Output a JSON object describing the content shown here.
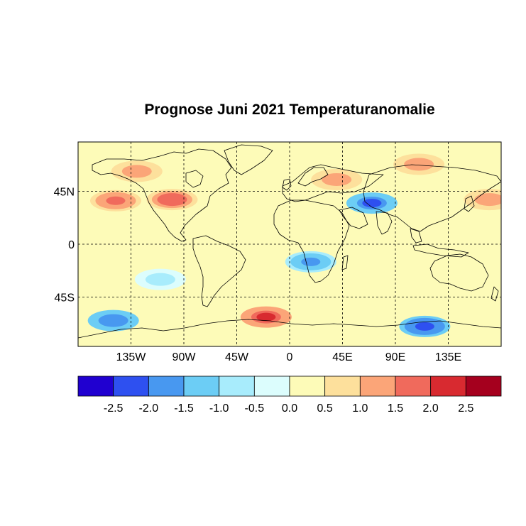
{
  "title": "Prognose Juni 2021 Temperaturanomalie",
  "map": {
    "projection": "equirectangular",
    "lon_range": [
      -180,
      180
    ],
    "lat_range": [
      -87,
      87
    ],
    "grid": "dashed",
    "lat_ticks": [
      {
        "value": 45,
        "label": "45N"
      },
      {
        "value": 0,
        "label": "0"
      },
      {
        "value": -45,
        "label": "45S"
      }
    ],
    "lon_ticks": [
      {
        "value": -135,
        "label": "135W"
      },
      {
        "value": -90,
        "label": "90W"
      },
      {
        "value": -45,
        "label": "45W"
      },
      {
        "value": 0,
        "label": "0"
      },
      {
        "value": 45,
        "label": "45E"
      },
      {
        "value": 90,
        "label": "90E"
      },
      {
        "value": 135,
        "label": "135E"
      }
    ],
    "anomalies": [
      {
        "region": "north-pacific-east",
        "lon": -148,
        "lat": 37,
        "value": 1.6
      },
      {
        "region": "us-west",
        "lon": -100,
        "lat": 38,
        "value": 1.8
      },
      {
        "region": "alaska",
        "lon": -130,
        "lat": 62,
        "value": 1.2
      },
      {
        "region": "north-pacific-west",
        "lon": 170,
        "lat": 38,
        "value": 1.2
      },
      {
        "region": "east-europe",
        "lon": 40,
        "lat": 55,
        "value": 1.3
      },
      {
        "region": "siberia",
        "lon": 110,
        "lat": 68,
        "value": 1.2
      },
      {
        "region": "central-asia",
        "lon": 70,
        "lat": 35,
        "value": -2.2
      },
      {
        "region": "southern-africa",
        "lon": 18,
        "lat": -15,
        "value": -1.6
      },
      {
        "region": "southern-ocean-atlantic",
        "lon": -20,
        "lat": -62,
        "value": 2.2
      },
      {
        "region": "southern-ocean-pacific",
        "lon": -150,
        "lat": -65,
        "value": -2.0
      },
      {
        "region": "southern-ocean-indian",
        "lon": 115,
        "lat": -70,
        "value": -2.3
      },
      {
        "region": "south-pacific",
        "lon": -110,
        "lat": -30,
        "value": -0.6
      },
      {
        "region": "indian-ocean",
        "lon": 75,
        "lat": -15,
        "value": 0.4
      }
    ]
  },
  "colorbar": {
    "colors": [
      "#2000d0",
      "#2e50f0",
      "#4898f0",
      "#6ccdf5",
      "#a8ecfc",
      "#dcfdfd",
      "#fdfbb8",
      "#fde09c",
      "#fba578",
      "#f06a5c",
      "#d82a30",
      "#a5001e"
    ],
    "tick_labels": [
      "-2.5",
      "-2.0",
      "-1.5",
      "-1.0",
      "-0.5",
      "0.0",
      "0.5",
      "1.0",
      "1.5",
      "2.0",
      "2.5"
    ]
  }
}
